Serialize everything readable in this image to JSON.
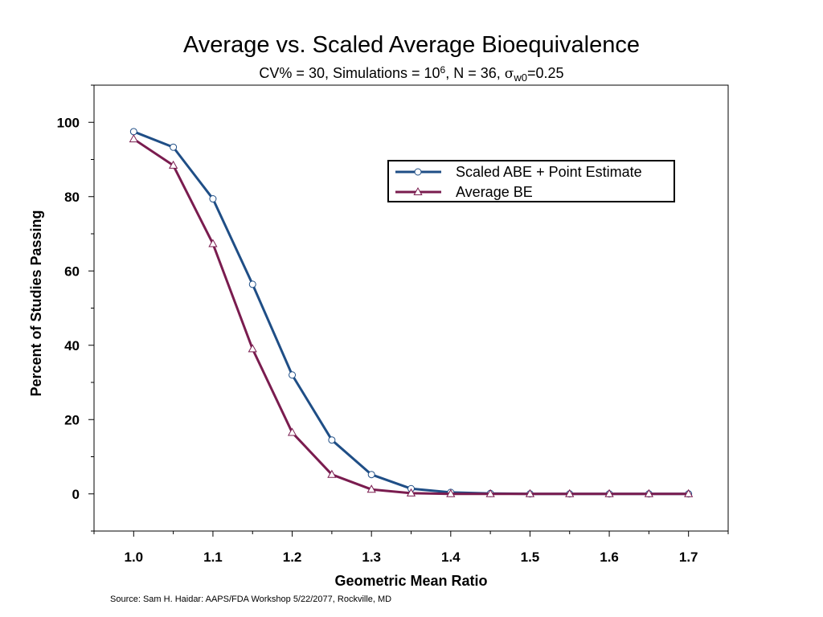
{
  "chart_data": {
    "type": "line",
    "title": "Average vs. Scaled Average Bioequivalence",
    "subtitle": {
      "cv": "CV% = 30, Simulations = 10",
      "exp": "6",
      "n": ", N = 36, ",
      "sigma": "σ",
      "sub": "w0",
      "val": "=0.25"
    },
    "xlabel": "Geometric Mean Ratio",
    "ylabel": "Percent of Studies Passing",
    "xlim": [
      0.95,
      1.75
    ],
    "ylim": [
      -10,
      110
    ],
    "x_ticks": [
      1.0,
      1.1,
      1.2,
      1.3,
      1.4,
      1.5,
      1.6,
      1.7
    ],
    "x_tick_labels": [
      "1.0",
      "1.1",
      "1.2",
      "1.3",
      "1.4",
      "1.5",
      "1.6",
      "1.7"
    ],
    "y_ticks": [
      0,
      20,
      40,
      60,
      80,
      100
    ],
    "y_tick_labels": [
      "0",
      "20",
      "40",
      "60",
      "80",
      "100"
    ],
    "grid": false,
    "legend_position": "top-right",
    "x": [
      1.0,
      1.05,
      1.1,
      1.15,
      1.2,
      1.25,
      1.3,
      1.35,
      1.4,
      1.45,
      1.5,
      1.55,
      1.6,
      1.65,
      1.7
    ],
    "series": [
      {
        "name": "Scaled ABE + Point Estimate",
        "color": "#1f4e86",
        "marker": "circle",
        "values": [
          97.5,
          93.3,
          79.4,
          56.4,
          32.0,
          14.5,
          5.2,
          1.4,
          0.4,
          0.1,
          0.0,
          0.0,
          0.0,
          0.0,
          0.0
        ]
      },
      {
        "name": "Average BE",
        "color": "#7a1c4f",
        "marker": "triangle",
        "values": [
          95.5,
          88.4,
          67.3,
          39.0,
          16.5,
          5.2,
          1.2,
          0.2,
          0.0,
          0.0,
          0.0,
          0.0,
          0.0,
          0.0,
          0.0
        ]
      }
    ]
  },
  "source": "Source: Sam H. Haidar:  AAPS/FDA Workshop 5/22/2077, Rockville, MD"
}
